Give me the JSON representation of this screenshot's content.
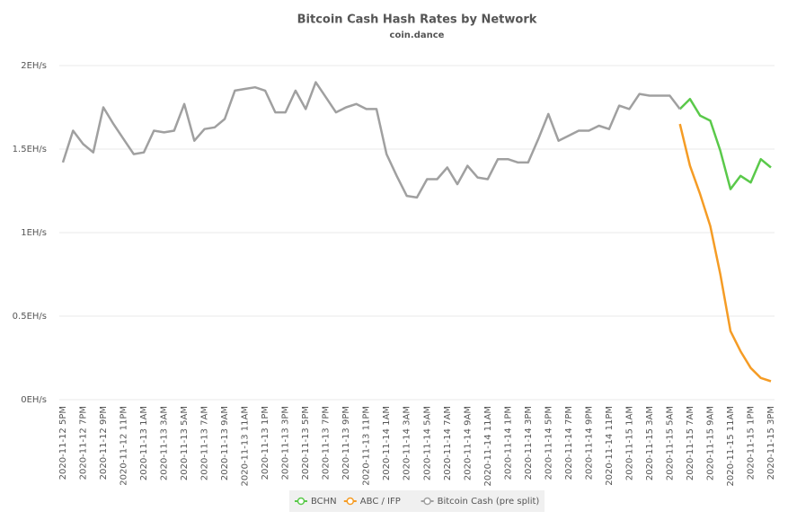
{
  "chart_data": {
    "type": "line",
    "title": "Bitcoin Cash Hash Rates by Network",
    "subtitle": "coin.dance",
    "categories": [
      "2020-11-12 5PM",
      null,
      "2020-11-12 7PM",
      null,
      "2020-11-12 9PM",
      null,
      "2020-11-12 11PM",
      null,
      "2020-11-13 1AM",
      null,
      "2020-11-13 3AM",
      null,
      "2020-11-13 5AM",
      null,
      "2020-11-13 7AM",
      null,
      "2020-11-13 9AM",
      null,
      "2020-11-13 11AM",
      null,
      "2020-11-13 1PM",
      null,
      "2020-11-13 3PM",
      null,
      "2020-11-13 5PM",
      null,
      "2020-11-13 7PM",
      null,
      "2020-11-13 9PM",
      null,
      "2020-11-13 11PM",
      null,
      "2020-11-14 1AM",
      null,
      "2020-11-14 3AM",
      null,
      "2020-11-14 5AM",
      null,
      "2020-11-14 7AM",
      null,
      "2020-11-14 9AM",
      null,
      "2020-11-14 11AM",
      null,
      "2020-11-14 1PM",
      null,
      "2020-11-14 3PM",
      null,
      "2020-11-14 5PM",
      null,
      "2020-11-14 7PM",
      null,
      "2020-11-14 9PM",
      null,
      "2020-11-14 11PM",
      null,
      "2020-11-15 1AM",
      null,
      "2020-11-15 3AM",
      null,
      "2020-11-15 5AM",
      null,
      "2020-11-15 7AM",
      null,
      "2020-11-15 9AM",
      null,
      "2020-11-15 11AM",
      null,
      "2020-11-15 1PM",
      null,
      "2020-11-15 3PM"
    ],
    "series": [
      {
        "name": "BCHN",
        "color": "#5ac94a",
        "values": [
          null,
          null,
          null,
          null,
          null,
          null,
          null,
          null,
          null,
          null,
          null,
          null,
          null,
          null,
          null,
          null,
          null,
          null,
          null,
          null,
          null,
          null,
          null,
          null,
          null,
          null,
          null,
          null,
          null,
          null,
          null,
          null,
          null,
          null,
          null,
          null,
          null,
          null,
          null,
          null,
          null,
          null,
          null,
          null,
          null,
          null,
          null,
          null,
          null,
          null,
          null,
          null,
          null,
          null,
          null,
          null,
          null,
          null,
          null,
          null,
          null,
          1.74,
          1.8,
          1.7,
          1.67,
          1.49,
          1.26,
          1.34,
          1.3,
          1.44,
          1.39
        ]
      },
      {
        "name": "ABC / IFP",
        "color": "#f59c25",
        "values": [
          null,
          null,
          null,
          null,
          null,
          null,
          null,
          null,
          null,
          null,
          null,
          null,
          null,
          null,
          null,
          null,
          null,
          null,
          null,
          null,
          null,
          null,
          null,
          null,
          null,
          null,
          null,
          null,
          null,
          null,
          null,
          null,
          null,
          null,
          null,
          null,
          null,
          null,
          null,
          null,
          null,
          null,
          null,
          null,
          null,
          null,
          null,
          null,
          null,
          null,
          null,
          null,
          null,
          null,
          null,
          null,
          null,
          null,
          null,
          null,
          null,
          1.65,
          1.4,
          1.23,
          1.04,
          0.75,
          0.41,
          0.29,
          0.19,
          0.13,
          0.11
        ]
      },
      {
        "name": "Bitcoin Cash (pre split)",
        "color": "#a0a0a0",
        "values": [
          1.42,
          1.61,
          1.53,
          1.48,
          1.75,
          1.65,
          1.56,
          1.47,
          1.48,
          1.61,
          1.6,
          1.61,
          1.77,
          1.55,
          1.62,
          1.63,
          1.68,
          1.85,
          1.86,
          1.87,
          1.85,
          1.72,
          1.72,
          1.85,
          1.74,
          1.9,
          1.81,
          1.72,
          1.75,
          1.77,
          1.74,
          1.74,
          1.47,
          1.34,
          1.22,
          1.21,
          1.32,
          1.32,
          1.39,
          1.29,
          1.4,
          1.33,
          1.32,
          1.44,
          1.44,
          1.42,
          1.42,
          1.56,
          1.71,
          1.55,
          1.58,
          1.61,
          1.61,
          1.64,
          1.62,
          1.76,
          1.74,
          1.83,
          1.82,
          1.82,
          1.82,
          1.74,
          null,
          null,
          null,
          null,
          null,
          null,
          null,
          null,
          null
        ]
      }
    ],
    "ylim": [
      0,
      2
    ],
    "yticks": [
      {
        "value": 0,
        "label": "0EH/s"
      },
      {
        "value": 0.5,
        "label": "0.5EH/s"
      },
      {
        "value": 1,
        "label": "1EH/s"
      },
      {
        "value": 1.5,
        "label": "1.5EH/s"
      },
      {
        "value": 2,
        "label": "2EH/s"
      }
    ],
    "grid": true
  }
}
